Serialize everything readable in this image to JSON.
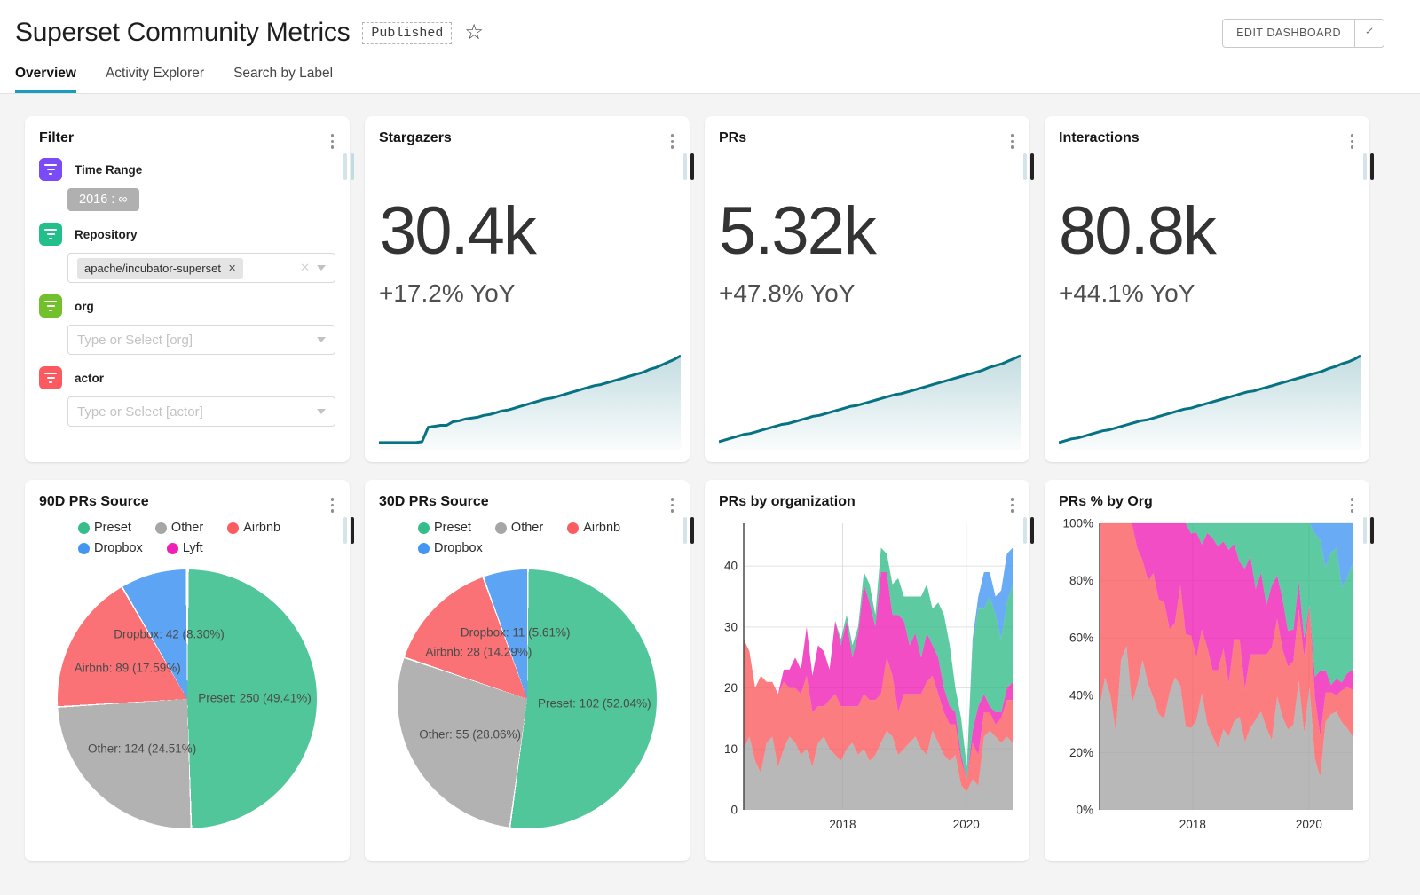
{
  "colors": {
    "accent": "#1a9cbf",
    "trendline": "#077282",
    "preset": "#35bd8a",
    "other": "#a6a6a6",
    "airbnb": "#fa5c60",
    "dropbox": "#4496f3",
    "lyft": "#ef20b6"
  },
  "header": {
    "title": "Superset Community Metrics",
    "badge": "Published",
    "edit_button": "EDIT DASHBOARD"
  },
  "tabs": [
    {
      "label": "Overview",
      "active": true
    },
    {
      "label": "Activity Explorer",
      "active": false
    },
    {
      "label": "Search by Label",
      "active": false
    }
  ],
  "filter_card": {
    "title": "Filter",
    "time_range": {
      "label": "Time Range",
      "value": "2016 : ∞",
      "icon_color": "#7a4cf8"
    },
    "repository": {
      "label": "Repository",
      "tag": "apache/incubator-superset",
      "icon_color": "#21c08b"
    },
    "org": {
      "label": "org",
      "placeholder": "Type or Select [org]",
      "icon_color": "#71c02c"
    },
    "actor": {
      "label": "actor",
      "placeholder": "Type or Select [actor]",
      "icon_color": "#fc5a5f"
    }
  },
  "stargazers": {
    "title": "Stargazers",
    "value": "30.4k",
    "subheader": "+17.2% YoY",
    "trend": [
      4,
      4,
      4,
      4,
      4,
      4,
      4,
      5,
      21,
      22,
      23,
      23,
      27,
      28,
      30,
      31,
      32,
      34,
      35,
      37,
      39,
      40,
      42,
      44,
      46,
      48,
      50,
      52,
      53,
      55,
      57,
      59,
      61,
      63,
      65,
      67,
      68,
      70,
      72,
      74,
      76,
      78,
      80,
      82,
      85,
      87,
      90,
      93,
      96,
      100
    ]
  },
  "prs": {
    "title": "PRs",
    "value": "5.32k",
    "subheader": "+47.8% YoY",
    "trend": [
      5,
      7,
      9,
      11,
      13,
      14,
      16,
      18,
      20,
      22,
      24,
      25,
      27,
      29,
      31,
      33,
      34,
      36,
      38,
      40,
      42,
      44,
      45,
      47,
      49,
      51,
      53,
      55,
      57,
      58,
      60,
      62,
      64,
      66,
      68,
      70,
      72,
      74,
      76,
      78,
      80,
      82,
      84,
      87,
      89,
      91,
      94,
      97,
      100
    ]
  },
  "interactions": {
    "title": "Interactions",
    "value": "80.8k",
    "subheader": "+44.1% YoY",
    "trend": [
      4,
      6,
      8,
      9,
      11,
      13,
      15,
      17,
      18,
      20,
      22,
      24,
      26,
      28,
      29,
      31,
      33,
      35,
      37,
      39,
      41,
      42,
      44,
      46,
      48,
      50,
      52,
      54,
      56,
      58,
      60,
      61,
      63,
      65,
      67,
      69,
      71,
      73,
      75,
      77,
      79,
      81,
      83,
      86,
      88,
      91,
      93,
      96,
      100
    ]
  },
  "pie_90d": {
    "title": "90D PRs Source",
    "type": "pie",
    "slices": [
      {
        "name": "Preset",
        "value": 250,
        "pct": 49.41,
        "color_key": "preset"
      },
      {
        "name": "Other",
        "value": 124,
        "pct": 24.51,
        "color_key": "other"
      },
      {
        "name": "Airbnb",
        "value": 89,
        "pct": 17.59,
        "color_key": "airbnb"
      },
      {
        "name": "Dropbox",
        "value": 42,
        "pct": 8.3,
        "color_key": "dropbox"
      },
      {
        "name": "Lyft",
        "pct": 0.19,
        "color_key": "lyft"
      }
    ]
  },
  "pie_30d": {
    "title": "30D PRs Source",
    "type": "pie",
    "slices": [
      {
        "name": "Preset",
        "value": 102,
        "pct": 52.04,
        "color_key": "preset"
      },
      {
        "name": "Other",
        "value": 55,
        "pct": 28.06,
        "color_key": "other"
      },
      {
        "name": "Airbnb",
        "value": 28,
        "pct": 14.29,
        "color_key": "airbnb"
      },
      {
        "name": "Dropbox",
        "value": 11,
        "pct": 5.61,
        "color_key": "dropbox"
      }
    ]
  },
  "org_series": {
    "x_start": 2016.4,
    "x_end": 2020.75,
    "series": [
      {
        "name": "Other",
        "color_key": "other",
        "values": [
          10,
          12,
          8,
          6,
          11,
          12,
          7,
          10,
          12,
          11,
          9,
          10,
          7,
          11,
          12,
          10,
          9,
          8,
          10,
          11,
          9,
          10,
          8,
          9,
          11,
          13,
          12,
          9,
          10,
          11,
          12,
          10,
          9,
          13,
          11,
          9,
          8,
          9,
          4,
          3,
          5,
          4,
          12,
          13,
          12,
          11,
          12,
          11
        ]
      },
      {
        "name": "Airbnb",
        "color_key": "airbnb",
        "values": [
          18,
          14,
          12,
          16,
          10,
          9,
          12,
          11,
          8,
          9,
          10,
          12,
          9,
          6,
          5,
          8,
          10,
          9,
          7,
          6,
          8,
          9,
          10,
          9,
          8,
          12,
          10,
          7,
          9,
          8,
          7,
          9,
          12,
          9,
          8,
          7,
          6,
          5,
          4,
          2,
          6,
          5,
          4,
          3,
          2,
          4,
          6,
          7
        ]
      },
      {
        "name": "Lyft",
        "color_key": "lyft",
        "values": [
          0,
          0,
          0,
          0,
          0,
          0,
          0,
          2,
          3,
          5,
          4,
          8,
          6,
          10,
          9,
          5,
          12,
          10,
          14,
          8,
          12,
          18,
          16,
          12,
          20,
          14,
          10,
          16,
          12,
          8,
          10,
          6,
          8,
          5,
          6,
          4,
          3,
          2,
          1,
          0,
          2,
          8,
          3,
          1,
          2,
          1,
          2,
          3
        ]
      },
      {
        "name": "Preset",
        "color_key": "preset",
        "values": [
          0,
          0,
          0,
          0,
          0,
          0,
          0,
          0,
          0,
          0,
          0,
          0,
          0,
          0,
          0,
          0,
          0,
          1,
          1,
          2,
          1,
          2,
          3,
          2,
          4,
          3,
          5,
          6,
          4,
          8,
          6,
          10,
          8,
          6,
          9,
          12,
          10,
          4,
          6,
          2,
          14,
          16,
          14,
          18,
          16,
          12,
          14,
          16
        ]
      },
      {
        "name": "Dropbox",
        "color_key": "dropbox",
        "values": [
          0,
          0,
          0,
          0,
          0,
          0,
          0,
          0,
          0,
          0,
          0,
          0,
          0,
          0,
          0,
          0,
          0,
          0,
          0,
          0,
          0,
          0,
          0,
          0,
          0,
          0,
          0,
          0,
          0,
          0,
          0,
          0,
          0,
          0,
          0,
          0,
          0,
          0,
          0,
          0,
          1,
          2,
          6,
          4,
          3,
          8,
          8,
          6
        ]
      }
    ]
  },
  "area_abs": {
    "title": "PRs by organization",
    "type": "area",
    "stacked": true,
    "percent": false,
    "ymax": 47,
    "yticks": [
      0,
      10,
      20,
      30,
      40
    ],
    "xticks": [
      2018,
      2020
    ]
  },
  "area_pct": {
    "title": "PRs % by Org",
    "type": "area",
    "stacked": true,
    "percent": true,
    "ymax": 100,
    "yticks": [
      0,
      20,
      40,
      60,
      80,
      100
    ],
    "xticks": [
      2018,
      2020
    ]
  }
}
